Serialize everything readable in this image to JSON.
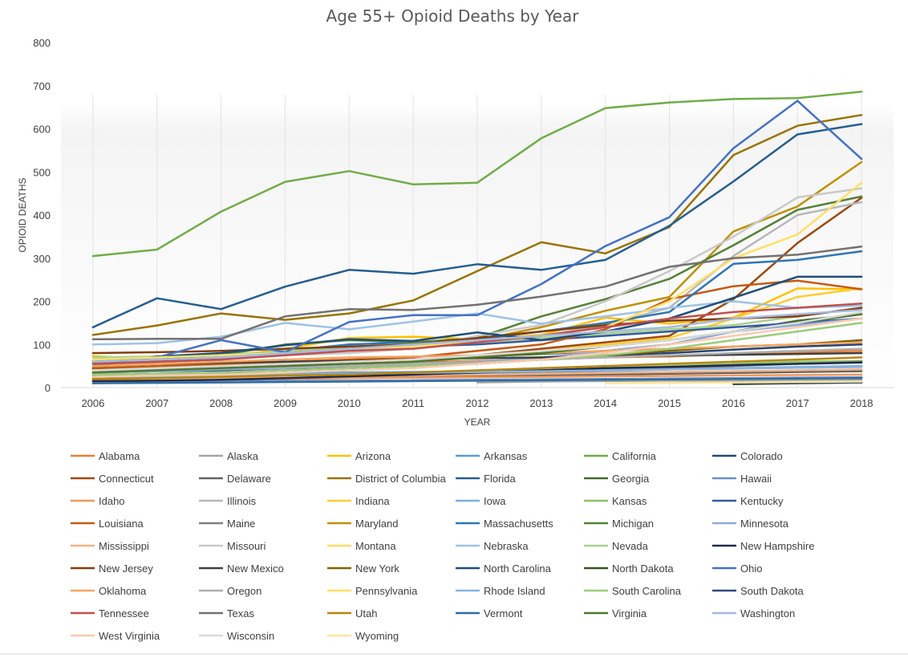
{
  "chart_data": {
    "type": "line",
    "title": "Age 55+ Opioid Deaths by Year",
    "xlabel": "YEAR",
    "ylabel": "OPIOID DEATHS",
    "x": [
      2006,
      2007,
      2008,
      2009,
      2010,
      2011,
      2012,
      2013,
      2014,
      2015,
      2016,
      2017,
      2018
    ],
    "ylim": [
      0,
      800
    ],
    "yticks": [
      0,
      100,
      200,
      300,
      400,
      500,
      600,
      700,
      800
    ],
    "grid": false,
    "legend_position": "bottom",
    "series": [
      {
        "name": "Alabama",
        "color": "#ED7D31",
        "values": [
          45,
          48,
          52,
          55,
          55,
          58,
          62,
          65,
          70,
          72,
          78,
          82,
          85
        ]
      },
      {
        "name": "Alaska",
        "color": "#A5A5A5",
        "values": [
          null,
          null,
          null,
          null,
          null,
          null,
          12,
          14,
          15,
          16,
          15,
          17,
          18
        ]
      },
      {
        "name": "Arizona",
        "color": "#FFC000",
        "values": [
          73,
          65,
          70,
          90,
          115,
          118,
          112,
          122,
          162,
          148,
          162,
          230,
          228
        ]
      },
      {
        "name": "Arkansas",
        "color": "#5B9BD5",
        "values": [
          28,
          30,
          32,
          33,
          35,
          36,
          38,
          40,
          42,
          44,
          45,
          46,
          48
        ]
      },
      {
        "name": "California",
        "color": "#70AD47",
        "values": [
          305,
          320,
          408,
          477,
          502,
          471,
          475,
          578,
          648,
          661,
          669,
          671,
          686
        ]
      },
      {
        "name": "Colorado",
        "color": "#264478",
        "values": [
          35,
          38,
          40,
          45,
          48,
          55,
          60,
          68,
          75,
          80,
          88,
          95,
          100
        ]
      },
      {
        "name": "Connecticut",
        "color": "#9E480E",
        "values": [
          40,
          42,
          45,
          50,
          55,
          62,
          75,
          90,
          105,
          120,
          205,
          335,
          440
        ]
      },
      {
        "name": "Delaware",
        "color": "#636363",
        "values": [
          15,
          16,
          18,
          20,
          22,
          24,
          26,
          28,
          30,
          32,
          34,
          36,
          38
        ]
      },
      {
        "name": "District of Columbia",
        "color": "#997300",
        "values": [
          122,
          144,
          172,
          157,
          172,
          202,
          270,
          337,
          311,
          372,
          539,
          607,
          632
        ]
      },
      {
        "name": "Florida",
        "color": "#255E91",
        "values": [
          140,
          207,
          182,
          234,
          273,
          264,
          286,
          273,
          296,
          375,
          478,
          587,
          611
        ]
      },
      {
        "name": "Georgia",
        "color": "#43682B",
        "values": [
          42,
          45,
          50,
          55,
          60,
          65,
          72,
          78,
          85,
          100,
          130,
          155,
          170
        ]
      },
      {
        "name": "Hawaii",
        "color": "#698ED0",
        "values": [
          12,
          13,
          14,
          15,
          16,
          17,
          18,
          19,
          20,
          21,
          22,
          23,
          24
        ]
      },
      {
        "name": "Idaho",
        "color": "#F1975A",
        "values": [
          18,
          19,
          20,
          21,
          22,
          23,
          24,
          25,
          26,
          27,
          28,
          29,
          30
        ]
      },
      {
        "name": "Illinois",
        "color": "#B7B7B7",
        "values": [
          65,
          70,
          72,
          80,
          85,
          90,
          105,
          120,
          145,
          185,
          305,
          400,
          430
        ]
      },
      {
        "name": "Indiana",
        "color": "#FFCD33",
        "values": [
          38,
          40,
          45,
          50,
          55,
          62,
          70,
          85,
          100,
          115,
          160,
          210,
          230
        ]
      },
      {
        "name": "Iowa",
        "color": "#7CAFDD",
        "values": [
          20,
          22,
          24,
          26,
          28,
          30,
          32,
          35,
          38,
          42,
          45,
          48,
          50
        ]
      },
      {
        "name": "Kansas",
        "color": "#8CC168",
        "values": [
          22,
          24,
          26,
          28,
          30,
          33,
          36,
          40,
          45,
          50,
          55,
          60,
          62
        ]
      },
      {
        "name": "Kentucky",
        "color": "#335AA1",
        "values": [
          55,
          60,
          65,
          80,
          90,
          95,
          100,
          110,
          120,
          130,
          140,
          150,
          160
        ]
      },
      {
        "name": "Louisiana",
        "color": "#C55A11",
        "values": [
          45,
          50,
          55,
          60,
          65,
          70,
          85,
          100,
          135,
          205,
          235,
          248,
          228
        ]
      },
      {
        "name": "Maine",
        "color": "#7F7F7F",
        "values": [
          20,
          22,
          24,
          26,
          28,
          30,
          32,
          35,
          40,
          45,
          50,
          55,
          60
        ]
      },
      {
        "name": "Maryland",
        "color": "#BF9000",
        "values": [
          62,
          60,
          75,
          80,
          95,
          100,
          110,
          140,
          178,
          210,
          362,
          420,
          523
        ]
      },
      {
        "name": "Massachusetts",
        "color": "#2E75B6",
        "values": [
          58,
          62,
          68,
          85,
          100,
          105,
          112,
          130,
          150,
          175,
          287,
          296,
          316
        ]
      },
      {
        "name": "Michigan",
        "color": "#548235",
        "values": [
          60,
          65,
          75,
          100,
          110,
          105,
          115,
          165,
          205,
          252,
          330,
          412,
          443
        ]
      },
      {
        "name": "Minnesota",
        "color": "#8FAADC",
        "values": [
          35,
          38,
          42,
          45,
          50,
          55,
          60,
          70,
          85,
          100,
          130,
          145,
          160
        ]
      },
      {
        "name": "Mississippi",
        "color": "#F4B183",
        "values": [
          18,
          20,
          22,
          24,
          26,
          28,
          30,
          32,
          34,
          36,
          38,
          40,
          42
        ]
      },
      {
        "name": "Missouri",
        "color": "#C9C9C9",
        "values": [
          60,
          65,
          70,
          75,
          80,
          90,
          120,
          145,
          200,
          270,
          350,
          441,
          462
        ]
      },
      {
        "name": "Montana",
        "color": "#FFD966",
        "values": [
          10,
          11,
          12,
          13,
          14,
          15,
          16,
          17,
          18,
          19,
          20,
          21,
          22
        ]
      },
      {
        "name": "Nebraska",
        "color": "#9DC3E6",
        "values": [
          100,
          103,
          118,
          150,
          135,
          153,
          172,
          148,
          165,
          185,
          200,
          185,
          190
        ]
      },
      {
        "name": "Nevada",
        "color": "#A9D18E",
        "values": [
          70,
          72,
          75,
          85,
          95,
          100,
          105,
          115,
          125,
          135,
          145,
          165,
          185
        ]
      },
      {
        "name": "New Hampshire",
        "color": "#1F2B4D",
        "values": [
          15,
          16,
          18,
          22,
          26,
          30,
          35,
          40,
          45,
          48,
          52,
          55,
          58
        ]
      },
      {
        "name": "New Jersey",
        "color": "#843C0C",
        "values": [
          80,
          82,
          85,
          90,
          95,
          100,
          115,
          130,
          145,
          155,
          160,
          165,
          185
        ]
      },
      {
        "name": "New Mexico",
        "color": "#404040",
        "values": [
          50,
          55,
          58,
          60,
          62,
          65,
          68,
          70,
          72,
          74,
          76,
          78,
          80
        ]
      },
      {
        "name": "New York",
        "color": "#806000",
        "values": [
          30,
          32,
          35,
          40,
          45,
          50,
          55,
          65,
          75,
          85,
          95,
          100,
          110
        ]
      },
      {
        "name": "North Carolina",
        "color": "#1F4E79",
        "values": [
          50,
          72,
          80,
          98,
          112,
          108,
          128,
          110,
          130,
          160,
          208,
          257,
          257
        ]
      },
      {
        "name": "North Dakota",
        "color": "#375623",
        "values": [
          null,
          null,
          null,
          null,
          null,
          null,
          null,
          null,
          null,
          null,
          8,
          10,
          12
        ]
      },
      {
        "name": "Ohio",
        "color": "#4472C4",
        "values": [
          60,
          70,
          110,
          82,
          152,
          168,
          168,
          240,
          328,
          395,
          555,
          665,
          530
        ]
      },
      {
        "name": "Oklahoma",
        "color": "#F4A460",
        "values": [
          50,
          55,
          60,
          65,
          70,
          72,
          75,
          80,
          85,
          90,
          95,
          100,
          105
        ]
      },
      {
        "name": "Oregon",
        "color": "#AEAEAE",
        "values": [
          40,
          42,
          45,
          48,
          50,
          55,
          60,
          65,
          70,
          75,
          80,
          85,
          90
        ]
      },
      {
        "name": "Pennsylvania",
        "color": "#FFE066",
        "values": [
          65,
          70,
          75,
          80,
          90,
          95,
          105,
          120,
          140,
          200,
          300,
          355,
          475
        ]
      },
      {
        "name": "Rhode Island",
        "color": "#88B4E0",
        "values": [
          25,
          26,
          28,
          30,
          32,
          34,
          36,
          38,
          40,
          42,
          44,
          46,
          48
        ]
      },
      {
        "name": "South Carolina",
        "color": "#9BCC7A",
        "values": [
          30,
          32,
          35,
          40,
          45,
          50,
          55,
          65,
          75,
          90,
          110,
          130,
          150
        ]
      },
      {
        "name": "South Dakota",
        "color": "#2F4B7C",
        "values": [
          null,
          null,
          null,
          null,
          null,
          null,
          null,
          null,
          null,
          null,
          10,
          11,
          12
        ]
      },
      {
        "name": "Tennessee",
        "color": "#C0504D",
        "values": [
          55,
          60,
          65,
          75,
          85,
          90,
          105,
          120,
          140,
          160,
          175,
          185,
          195
        ]
      },
      {
        "name": "Texas",
        "color": "#767171",
        "values": [
          112,
          113,
          113,
          165,
          182,
          180,
          192,
          211,
          234,
          280,
          300,
          308,
          327
        ]
      },
      {
        "name": "Utah",
        "color": "#B8860B",
        "values": [
          20,
          22,
          25,
          28,
          30,
          35,
          40,
          45,
          50,
          55,
          60,
          65,
          70
        ]
      },
      {
        "name": "Vermont",
        "color": "#2E6DA4",
        "values": [
          10,
          11,
          12,
          13,
          14,
          15,
          16,
          17,
          18,
          19,
          20,
          21,
          22
        ]
      },
      {
        "name": "Virginia",
        "color": "#4E7A2E",
        "values": [
          35,
          40,
          45,
          50,
          55,
          60,
          70,
          80,
          95,
          110,
          130,
          150,
          170
        ]
      },
      {
        "name": "Washington",
        "color": "#A4B9E0",
        "values": [
          60,
          65,
          70,
          80,
          90,
          100,
          110,
          120,
          130,
          140,
          160,
          170,
          180
        ]
      },
      {
        "name": "West Virginia",
        "color": "#F8CBAD",
        "values": [
          25,
          28,
          30,
          35,
          40,
          45,
          55,
          65,
          80,
          100,
          120,
          140,
          160
        ]
      },
      {
        "name": "Wisconsin",
        "color": "#D9D9D9",
        "values": [
          40,
          45,
          50,
          55,
          60,
          65,
          75,
          85,
          95,
          110,
          130,
          150,
          175
        ]
      },
      {
        "name": "Wyoming",
        "color": "#FFE699",
        "values": [
          null,
          null,
          null,
          null,
          null,
          null,
          null,
          null,
          10,
          11,
          12,
          13,
          14
        ]
      }
    ]
  }
}
